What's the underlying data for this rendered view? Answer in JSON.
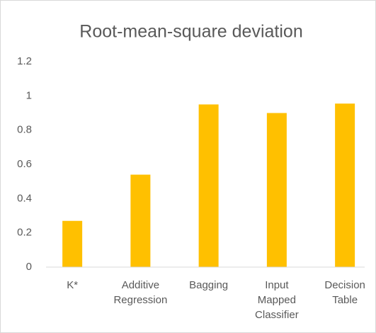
{
  "chart_data": {
    "type": "bar",
    "title": "Root-mean-square deviation",
    "categories": [
      "K*",
      "Additive Regression",
      "Bagging",
      "Input Mapped Classifier",
      "Decision Table"
    ],
    "values": [
      0.27,
      0.54,
      0.95,
      0.9,
      0.955
    ],
    "color": "#ffc000",
    "ylim": [
      0,
      1.2
    ],
    "yticks": [
      0,
      0.2,
      0.4,
      0.6,
      0.8,
      1,
      1.2
    ],
    "grid": false
  }
}
